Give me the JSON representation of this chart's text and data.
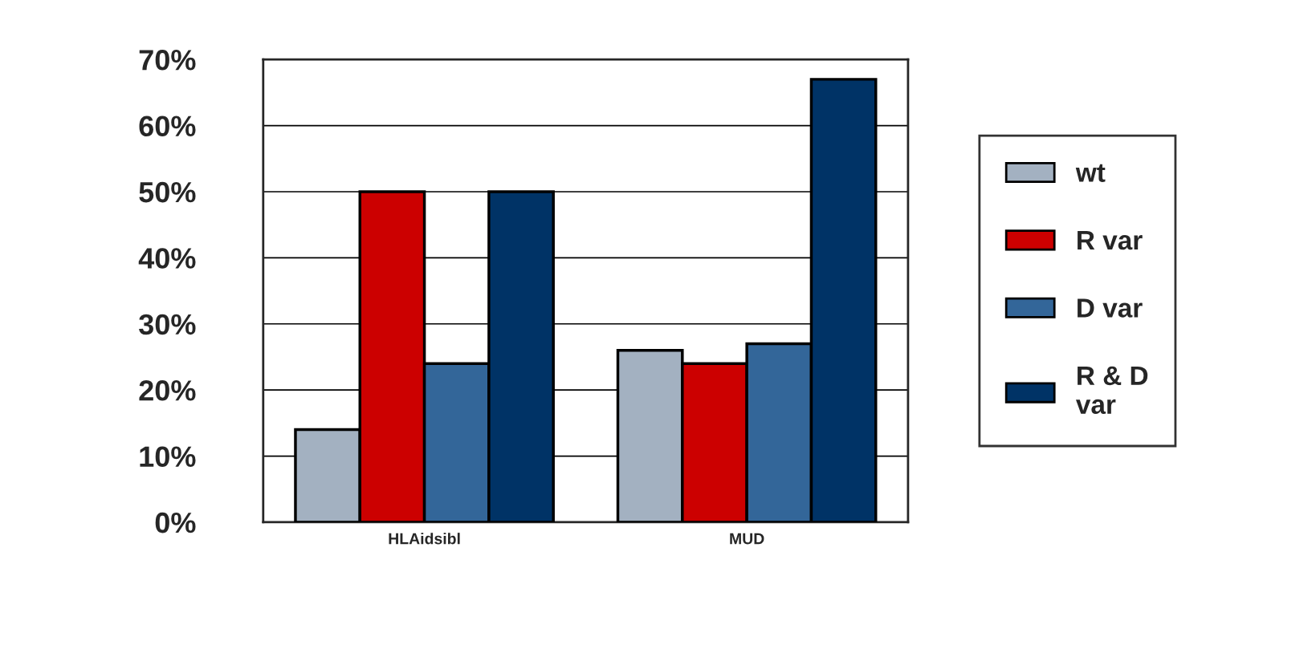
{
  "chart_data": {
    "type": "bar",
    "categories": [
      "HLAidsibl",
      "MUD"
    ],
    "series": [
      {
        "name": "wt",
        "color": "#a3b1c1",
        "values": [
          14,
          26
        ]
      },
      {
        "name": "R var",
        "color": "#cc0000",
        "values": [
          50,
          24
        ]
      },
      {
        "name": "D var",
        "color": "#336699",
        "values": [
          24,
          27
        ]
      },
      {
        "name": "R & D\nvar",
        "color": "#003366",
        "values": [
          50,
          67
        ]
      }
    ],
    "ylim": [
      0,
      70
    ],
    "yticks": [
      {
        "value": 0,
        "label": "0%"
      },
      {
        "value": 10,
        "label": "10%"
      },
      {
        "value": 20,
        "label": "20%"
      },
      {
        "value": 30,
        "label": "30%"
      },
      {
        "value": 40,
        "label": "40%"
      },
      {
        "value": 50,
        "label": "50%"
      },
      {
        "value": 60,
        "label": "60%"
      },
      {
        "value": 70,
        "label": "70%"
      }
    ],
    "grid": "y",
    "legend": "right"
  }
}
